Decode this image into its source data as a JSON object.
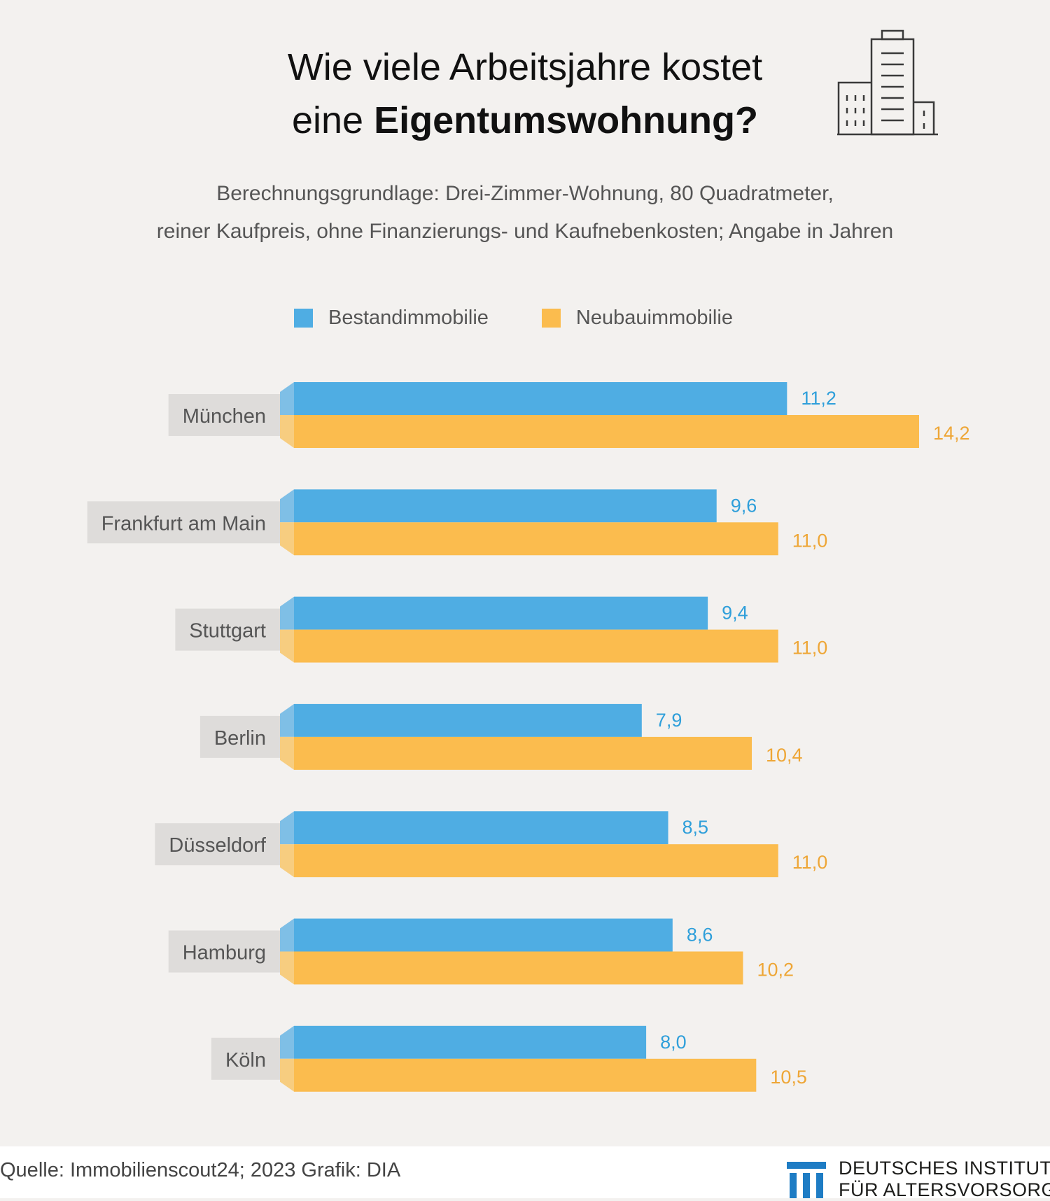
{
  "title": {
    "line1": "Wie viele Arbeitsjahre kostet",
    "line2_regular": "eine ",
    "line2_bold": "Eigentumswohnung?"
  },
  "subtitle": {
    "line1": "Berechnungsgrundlage: Drei-Zimmer-Wohnung, 80 Quadratmeter,",
    "line2": "reiner Kaufpreis, ohne Finanzierungs- und Kaufnebenkosten; Angabe in Jahren"
  },
  "footer": {
    "source": "Quelle: Immobilienscout24; 2023  Grafik: DIA",
    "logo_line1": "DEUTSCHES INSTITUT",
    "logo_line2": "FÜR ALTERSVORSORGE"
  },
  "colors": {
    "background": "#f3f1ef",
    "bestand": "#4fade3",
    "neubau": "#fbbc4e",
    "label_box": "#dedcda"
  },
  "icons": {
    "header_icon": "building-icon",
    "logo": "dia-logo-icon"
  },
  "chart_data": {
    "type": "bar",
    "orientation": "horizontal",
    "categories": [
      "München",
      "Frankfurt am Main",
      "Stuttgart",
      "Berlin",
      "Düsseldorf",
      "Hamburg",
      "Köln"
    ],
    "series": [
      {
        "name": "Bestandimmobilie",
        "color": "#4fade3",
        "values": [
          11.2,
          9.6,
          9.4,
          7.9,
          8.5,
          8.6,
          8.0
        ],
        "labels": [
          "11,2",
          "9,6",
          "9,4",
          "7,9",
          "8,5",
          "8,6",
          "8,0"
        ]
      },
      {
        "name": "Neubauimmobilie",
        "color": "#fbbc4e",
        "values": [
          14.2,
          11.0,
          11.0,
          10.4,
          11.0,
          10.2,
          10.5
        ],
        "labels": [
          "14,2",
          "11,0",
          "11,0",
          "10,4",
          "11,0",
          "10,2",
          "10,5"
        ]
      }
    ],
    "xlim": [
      0,
      14.2
    ],
    "grid": false,
    "legend_position": "top"
  }
}
